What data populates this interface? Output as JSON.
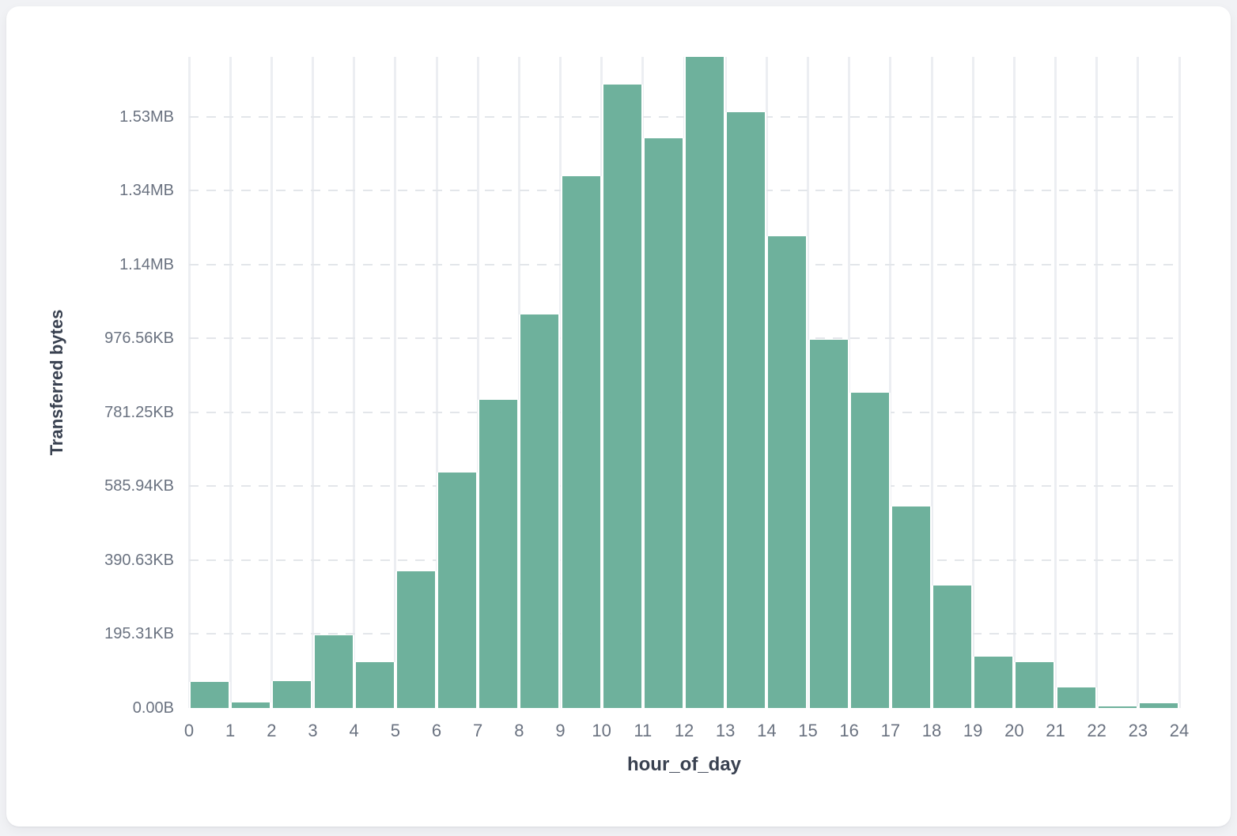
{
  "card": {
    "kind": "histogram-card"
  },
  "chart_data": {
    "type": "bar",
    "title": "",
    "xlabel": "hour_of_day",
    "ylabel": "Transferred bytes",
    "categories": [
      0,
      1,
      2,
      3,
      4,
      5,
      6,
      7,
      8,
      9,
      10,
      11,
      12,
      13,
      14,
      15,
      16,
      17,
      18,
      19,
      20,
      21,
      22,
      23
    ],
    "values_bytes": [
      71000,
      15000,
      73000,
      196000,
      124000,
      370000,
      638000,
      835000,
      1066000,
      1440000,
      1688000,
      1541000,
      1762000,
      1613000,
      1276000,
      996000,
      854000,
      546000,
      332000,
      139000,
      124000,
      56000,
      4000,
      13000
    ],
    "x_tick_labels": [
      "0",
      "1",
      "2",
      "3",
      "4",
      "5",
      "6",
      "7",
      "8",
      "9",
      "10",
      "11",
      "12",
      "13",
      "14",
      "15",
      "16",
      "17",
      "18",
      "19",
      "20",
      "21",
      "22",
      "23",
      "24"
    ],
    "y_ticks": [
      {
        "label": "0.00B",
        "bytes": 0
      },
      {
        "label": "195.31KB",
        "bytes": 200000
      },
      {
        "label": "390.63KB",
        "bytes": 400000
      },
      {
        "label": "585.94KB",
        "bytes": 600000
      },
      {
        "label": "781.25KB",
        "bytes": 800000
      },
      {
        "label": "976.56KB",
        "bytes": 1000000
      },
      {
        "label": "1.14MB",
        "bytes": 1200000
      },
      {
        "label": "1.34MB",
        "bytes": 1400000
      },
      {
        "label": "1.53MB",
        "bytes": 1600000
      }
    ],
    "ylim": [
      0,
      1762000
    ],
    "grid": true,
    "legend": false,
    "colors": {
      "bar": "#6eb19c",
      "bar_gap": "#ffffff",
      "v_grid": "#eceef2",
      "h_grid_dashed": "#e3e6ea",
      "tick_text": "#6a7280",
      "axis_title_text": "#394150",
      "card_bg": "#ffffff",
      "page_bg": "#f1f2f5"
    }
  }
}
